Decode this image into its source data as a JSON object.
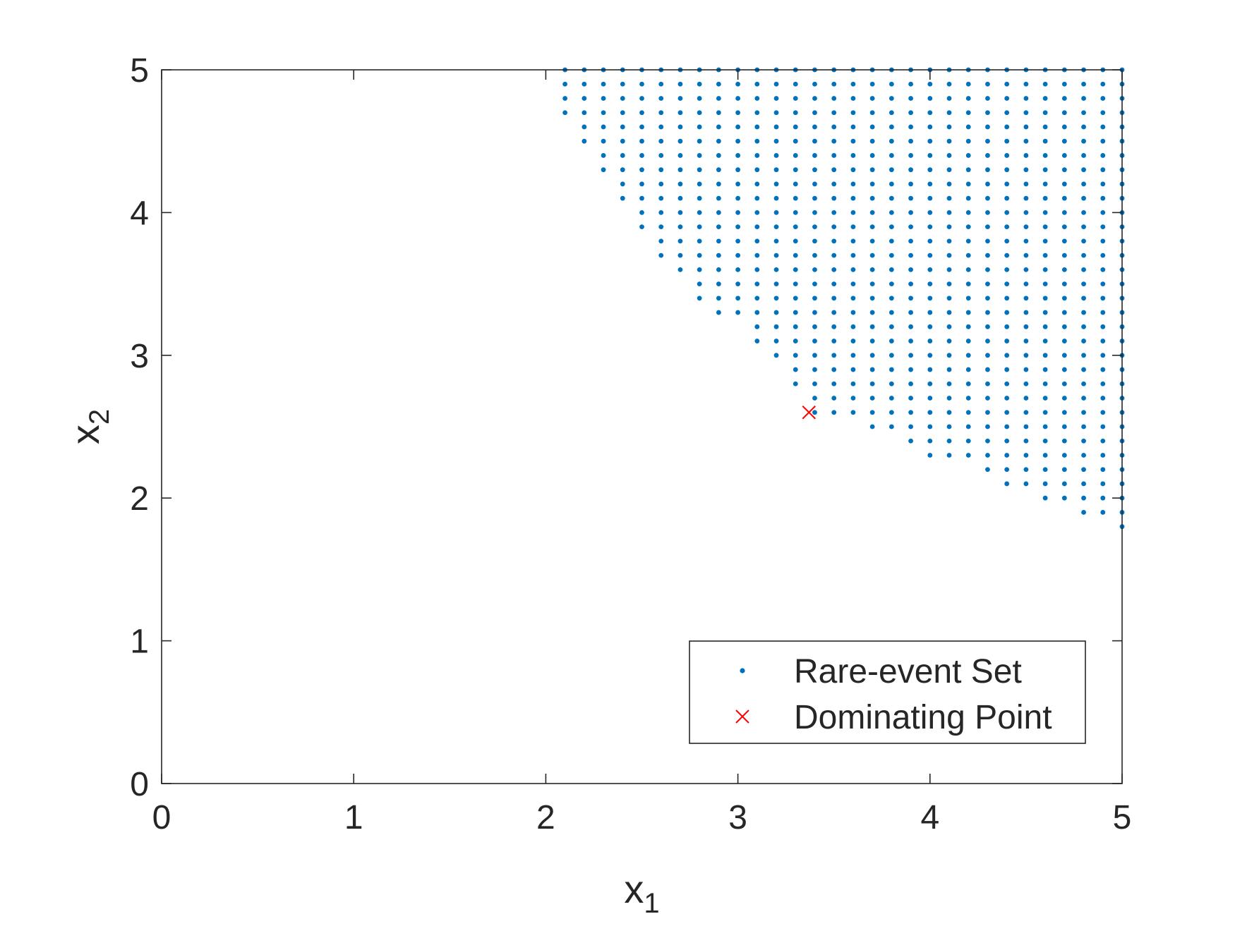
{
  "chart_data": {
    "type": "scatter",
    "title": "",
    "xlabel": "x",
    "xlabel_sub": "1",
    "ylabel": "x",
    "ylabel_sub": "2",
    "xlim": [
      0,
      5
    ],
    "ylim": [
      0,
      5
    ],
    "xticks": [
      0,
      1,
      2,
      3,
      4,
      5
    ],
    "yticks": [
      0,
      1,
      2,
      3,
      4,
      5
    ],
    "xtick_labels": [
      "0",
      "1",
      "2",
      "3",
      "4",
      "5"
    ],
    "ytick_labels": [
      "0",
      "1",
      "2",
      "3",
      "4",
      "5"
    ],
    "grid": false,
    "legend": {
      "position": "bottom-right",
      "entries": [
        {
          "label": "Rare-event Set",
          "marker": "dot",
          "color": "#0072BD"
        },
        {
          "label": "Dominating Point",
          "marker": "x",
          "color": "#FF0000"
        }
      ]
    },
    "series": [
      {
        "name": "Rare-event Set",
        "marker": "dot",
        "color": "#0072BD",
        "grid_step": 0.1,
        "x_max": 5.0,
        "y_max": 5.0,
        "boundary_column_min_y": [
          [
            2.1,
            4.7
          ],
          [
            2.2,
            4.5
          ],
          [
            2.3,
            4.3
          ],
          [
            2.4,
            4.1
          ],
          [
            2.5,
            3.9
          ],
          [
            2.6,
            3.7
          ],
          [
            2.7,
            3.6
          ],
          [
            2.8,
            3.4
          ],
          [
            2.9,
            3.3
          ],
          [
            3.0,
            3.3
          ],
          [
            3.1,
            3.1
          ],
          [
            3.2,
            3.0
          ],
          [
            3.3,
            2.8
          ],
          [
            3.4,
            2.6
          ],
          [
            3.5,
            2.6
          ],
          [
            3.6,
            2.6
          ],
          [
            3.7,
            2.5
          ],
          [
            3.8,
            2.5
          ],
          [
            3.9,
            2.4
          ],
          [
            4.0,
            2.3
          ],
          [
            4.1,
            2.3
          ],
          [
            4.2,
            2.3
          ],
          [
            4.3,
            2.2
          ],
          [
            4.4,
            2.1
          ],
          [
            4.5,
            2.1
          ],
          [
            4.6,
            2.0
          ],
          [
            4.7,
            2.0
          ],
          [
            4.8,
            1.9
          ],
          [
            4.9,
            1.9
          ],
          [
            5.0,
            1.8
          ]
        ]
      },
      {
        "name": "Dominating Point",
        "marker": "x",
        "color": "#FF0000",
        "points": [
          [
            3.37,
            2.6
          ]
        ]
      }
    ]
  }
}
